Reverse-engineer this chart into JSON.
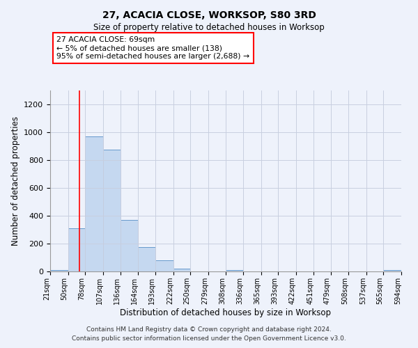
{
  "title": "27, ACACIA CLOSE, WORKSOP, S80 3RD",
  "subtitle": "Size of property relative to detached houses in Worksop",
  "xlabel": "Distribution of detached houses by size in Worksop",
  "ylabel": "Number of detached properties",
  "bar_color": "#c5d8f0",
  "bar_edge_color": "#6699cc",
  "bin_edges": [
    21,
    50,
    78,
    107,
    136,
    164,
    193,
    222,
    250,
    279,
    308,
    336,
    365,
    393,
    422,
    451,
    479,
    508,
    537,
    565,
    594
  ],
  "bar_heights": [
    10,
    310,
    970,
    875,
    370,
    175,
    80,
    20,
    0,
    0,
    10,
    0,
    0,
    0,
    0,
    0,
    0,
    0,
    0,
    10
  ],
  "tick_labels": [
    "21sqm",
    "50sqm",
    "78sqm",
    "107sqm",
    "136sqm",
    "164sqm",
    "193sqm",
    "222sqm",
    "250sqm",
    "279sqm",
    "308sqm",
    "336sqm",
    "365sqm",
    "393sqm",
    "422sqm",
    "451sqm",
    "479sqm",
    "508sqm",
    "537sqm",
    "565sqm",
    "594sqm"
  ],
  "ylim": [
    0,
    1300
  ],
  "yticks": [
    0,
    200,
    400,
    600,
    800,
    1000,
    1200
  ],
  "property_line_x": 69,
  "annotation_line1": "27 ACACIA CLOSE: 69sqm",
  "annotation_line2": "← 5% of detached houses are smaller (138)",
  "annotation_line3": "95% of semi-detached houses are larger (2,688) →",
  "footer_line1": "Contains HM Land Registry data © Crown copyright and database right 2024.",
  "footer_line2": "Contains public sector information licensed under the Open Government Licence v3.0.",
  "background_color": "#eef2fb",
  "grid_color": "#c8cfe0"
}
